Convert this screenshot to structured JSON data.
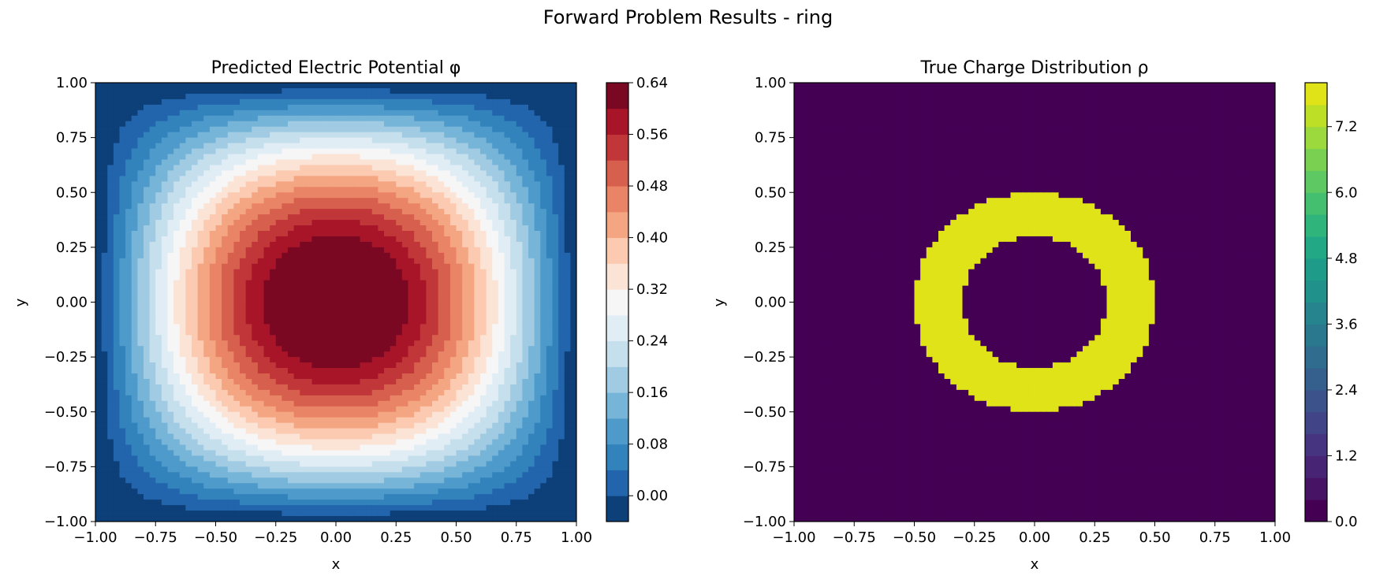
{
  "figure": {
    "title": "Forward Problem Results - ring"
  },
  "chart_data": [
    {
      "type": "heatmap",
      "subtype": "filled-contour",
      "title": "Predicted Electric Potential φ",
      "xlabel": "x",
      "ylabel": "y",
      "xlim": [
        -1.0,
        1.0
      ],
      "ylim": [
        -1.0,
        1.0
      ],
      "xticks": [
        "−1.00",
        "−0.75",
        "−0.50",
        "−0.25",
        "0.00",
        "0.25",
        "0.50",
        "0.75",
        "1.00"
      ],
      "yticks": [
        "−1.00",
        "−0.75",
        "−0.50",
        "−0.25",
        "0.00",
        "0.25",
        "0.50",
        "0.75",
        "1.00"
      ],
      "colormap": "RdBu_r",
      "colorbar": {
        "range": [
          -0.04,
          0.64
        ],
        "levels": [
          -0.04,
          0.0,
          0.04,
          0.08,
          0.12,
          0.16,
          0.2,
          0.24,
          0.28,
          0.32,
          0.36,
          0.4,
          0.44,
          0.48,
          0.52,
          0.56,
          0.6,
          0.64
        ],
        "colors": [
          "#0d3f78",
          "#2265ac",
          "#3282bc",
          "#4d9acb",
          "#76b4d8",
          "#a0cbe3",
          "#c5dfed",
          "#e1edf5",
          "#f7f6f6",
          "#fbe4d6",
          "#fbcab1",
          "#f4a582",
          "#ea8466",
          "#d6604d",
          "#c13739",
          "#a81529",
          "#7a0823"
        ],
        "tick_values": [
          0.0,
          0.08,
          0.16,
          0.24,
          0.32,
          0.4,
          0.48,
          0.56,
          0.64
        ],
        "tick_labels": [
          "0.00",
          "0.08",
          "0.16",
          "0.24",
          "0.32",
          "0.40",
          "0.48",
          "0.56",
          "0.64"
        ]
      },
      "field": "approximately 0.72·sin(π(x+1)/2)·sin(π(y+1)/2) − 0.04, maximum ≈ 0.68 at the center, minimum ≈ −0.04 at the corners"
    },
    {
      "type": "heatmap",
      "subtype": "filled-contour",
      "title": "True Charge Distribution ρ",
      "xlabel": "x",
      "ylabel": "y",
      "xlim": [
        -1.0,
        1.0
      ],
      "ylim": [
        -1.0,
        1.0
      ],
      "xticks": [
        "−1.00",
        "−0.75",
        "−0.50",
        "−0.25",
        "0.00",
        "0.25",
        "0.50",
        "0.75",
        "1.00"
      ],
      "yticks": [
        "−1.00",
        "−0.75",
        "−0.50",
        "−0.25",
        "0.00",
        "0.25",
        "0.50",
        "0.75",
        "1.00"
      ],
      "colormap": "viridis",
      "colorbar": {
        "range": [
          0.0,
          8.0
        ],
        "levels": [
          0.0,
          0.4,
          0.8,
          1.2,
          1.6,
          2.0,
          2.4,
          2.8,
          3.2,
          3.6,
          4.0,
          4.4,
          4.8,
          5.2,
          5.6,
          6.0,
          6.4,
          6.8,
          7.2,
          7.6,
          8.0
        ],
        "colors": [
          "#440154",
          "#471365",
          "#482475",
          "#463480",
          "#414487",
          "#3b528b",
          "#355f8d",
          "#2f6c8e",
          "#2a788e",
          "#25848e",
          "#21918c",
          "#1e9c89",
          "#22a884",
          "#2fb47c",
          "#44bf70",
          "#5ec962",
          "#7ad151",
          "#9bd93c",
          "#bddf26",
          "#dfe318"
        ],
        "tick_values": [
          0.0,
          1.2,
          2.4,
          3.6,
          4.8,
          6.0,
          7.2
        ],
        "tick_labels": [
          "0.0",
          "1.2",
          "2.4",
          "3.6",
          "4.8",
          "6.0",
          "7.2"
        ]
      },
      "background_value": 0.0,
      "ring": {
        "inner_radius": 0.3,
        "outer_radius": 0.5,
        "value": 8.0,
        "center": [
          0.0,
          0.0
        ]
      }
    }
  ]
}
